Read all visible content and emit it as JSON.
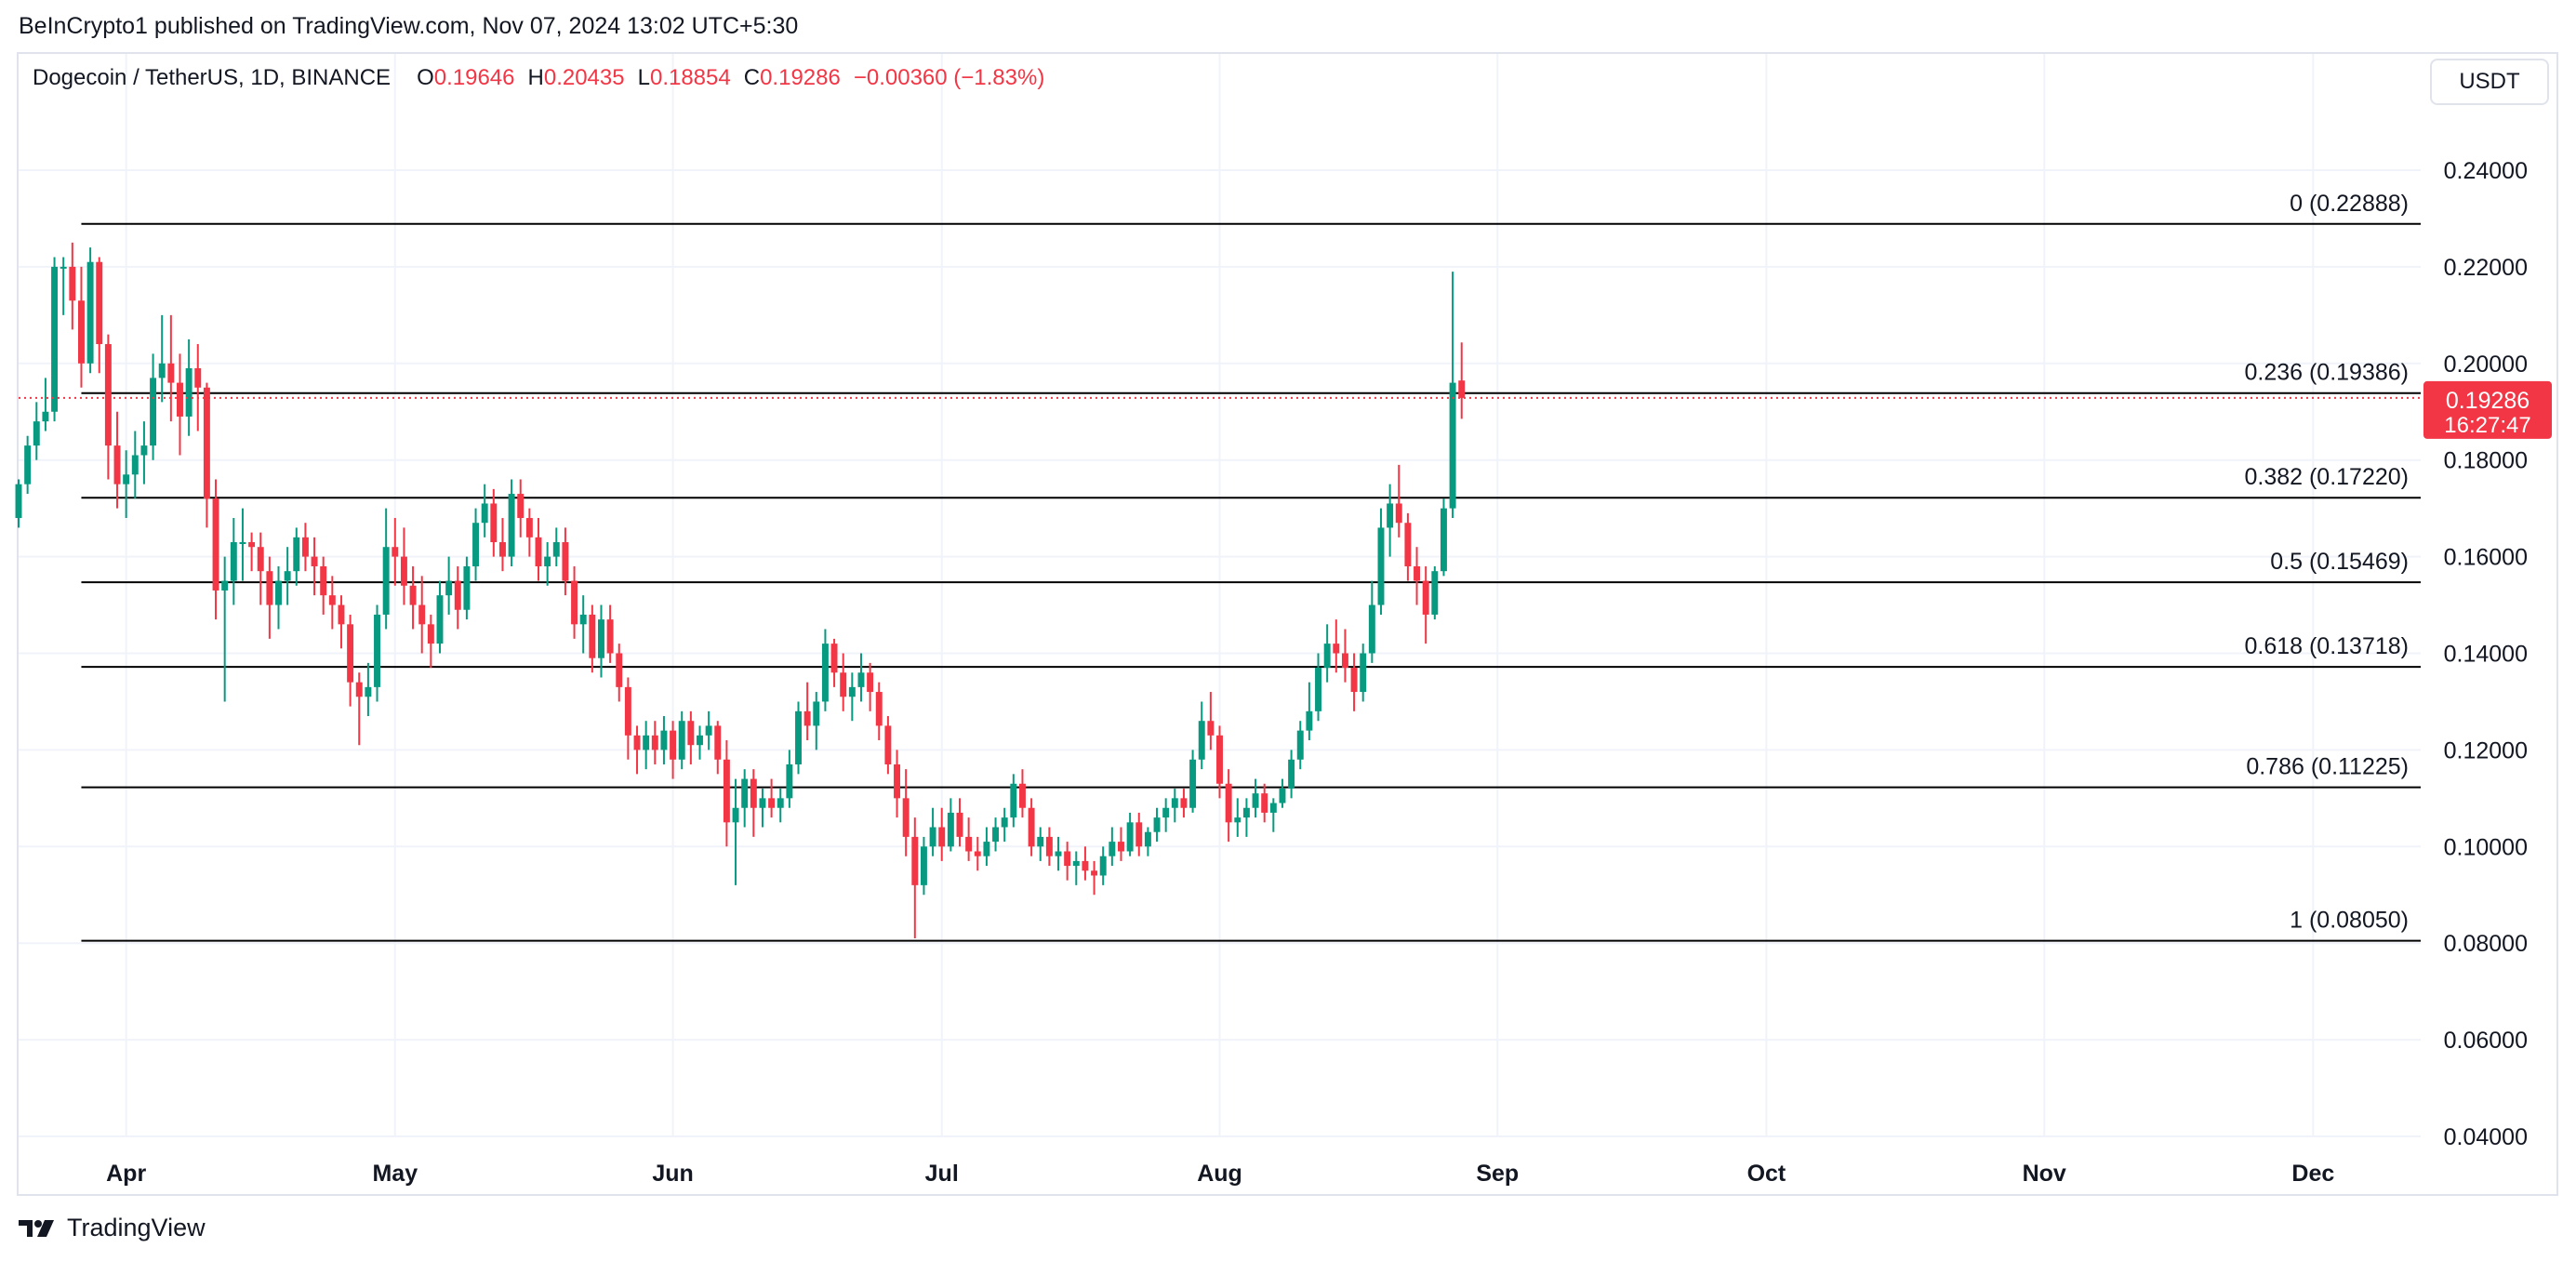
{
  "header": {
    "published": "BeInCrypto1 published on TradingView.com, Nov 07, 2024 13:02 UTC+5:30"
  },
  "legend": {
    "symbol": "Dogecoin / TetherUS, 1D, BINANCE",
    "open_label": "O",
    "open": "0.19646",
    "high_label": "H",
    "high": "0.20435",
    "low_label": "L",
    "low": "0.18854",
    "close_label": "C",
    "close": "0.19286",
    "change": "−0.00360 (−1.83%)"
  },
  "currency": "USDT",
  "footer": {
    "brand": "TradingView"
  },
  "colors": {
    "up": "#089981",
    "down": "#f23645",
    "grid": "#f0f3fa",
    "fib_line": "#000000",
    "text": "#131722"
  },
  "chart_data": {
    "type": "candlestick",
    "symbol": "Dogecoin / TetherUS",
    "interval": "1D",
    "exchange": "BINANCE",
    "currency": "USDT",
    "ylim": [
      0.04,
      0.25
    ],
    "yticks": [
      "0.04000",
      "0.06000",
      "0.08000",
      "0.10000",
      "0.12000",
      "0.14000",
      "0.16000",
      "0.18000",
      "0.20000",
      "0.22000",
      "0.24000"
    ],
    "xticks": [
      {
        "label": "Apr",
        "date": "2024-04-01"
      },
      {
        "label": "May",
        "date": "2024-05-01"
      },
      {
        "label": "Jun",
        "date": "2024-06-01"
      },
      {
        "label": "Jul",
        "date": "2024-07-01"
      },
      {
        "label": "Aug",
        "date": "2024-08-01"
      },
      {
        "label": "Sep",
        "date": "2024-09-01"
      },
      {
        "label": "Oct",
        "date": "2024-10-01"
      },
      {
        "label": "Nov",
        "date": "2024-11-01"
      },
      {
        "label": "Dec",
        "date": "2024-12-01"
      }
    ],
    "x_range": [
      "2024-03-20",
      "2024-12-13"
    ],
    "fib_start_date": "2024-03-27",
    "fib_levels": [
      {
        "label": "0 (0.22888)",
        "value": 0.22888
      },
      {
        "label": "0.236 (0.19386)",
        "value": 0.19386
      },
      {
        "label": "0.382 (0.17220)",
        "value": 0.1722
      },
      {
        "label": "0.5 (0.15469)",
        "value": 0.15469
      },
      {
        "label": "0.618 (0.13718)",
        "value": 0.13718
      },
      {
        "label": "0.786 (0.11225)",
        "value": 0.11225
      },
      {
        "label": "1 (0.08050)",
        "value": 0.0805
      }
    ],
    "last_price": {
      "label": "0.19286",
      "countdown": "16:27:47",
      "value": 0.19286
    },
    "first_date": "2024-03-20",
    "candles": [
      [
        0.168,
        0.176,
        0.166,
        0.175
      ],
      [
        0.175,
        0.185,
        0.173,
        0.183
      ],
      [
        0.183,
        0.192,
        0.18,
        0.188
      ],
      [
        0.188,
        0.197,
        0.186,
        0.19
      ],
      [
        0.19,
        0.222,
        0.188,
        0.22
      ],
      [
        0.22,
        0.222,
        0.21,
        0.22
      ],
      [
        0.22,
        0.225,
        0.207,
        0.213
      ],
      [
        0.213,
        0.22,
        0.195,
        0.2
      ],
      [
        0.2,
        0.224,
        0.198,
        0.221
      ],
      [
        0.221,
        0.222,
        0.198,
        0.204
      ],
      [
        0.204,
        0.206,
        0.176,
        0.183
      ],
      [
        0.183,
        0.19,
        0.17,
        0.175
      ],
      [
        0.175,
        0.182,
        0.168,
        0.177
      ],
      [
        0.177,
        0.186,
        0.172,
        0.181
      ],
      [
        0.181,
        0.188,
        0.175,
        0.183
      ],
      [
        0.183,
        0.202,
        0.18,
        0.197
      ],
      [
        0.197,
        0.21,
        0.192,
        0.2
      ],
      [
        0.2,
        0.21,
        0.188,
        0.196
      ],
      [
        0.196,
        0.202,
        0.181,
        0.189
      ],
      [
        0.189,
        0.205,
        0.185,
        0.199
      ],
      [
        0.199,
        0.204,
        0.186,
        0.195
      ],
      [
        0.195,
        0.196,
        0.166,
        0.172
      ],
      [
        0.172,
        0.176,
        0.147,
        0.153
      ],
      [
        0.153,
        0.16,
        0.13,
        0.155
      ],
      [
        0.155,
        0.168,
        0.15,
        0.163
      ],
      [
        0.163,
        0.17,
        0.155,
        0.163
      ],
      [
        0.163,
        0.165,
        0.157,
        0.162
      ],
      [
        0.162,
        0.165,
        0.15,
        0.157
      ],
      [
        0.157,
        0.16,
        0.143,
        0.15
      ],
      [
        0.15,
        0.158,
        0.145,
        0.155
      ],
      [
        0.155,
        0.162,
        0.15,
        0.157
      ],
      [
        0.157,
        0.166,
        0.154,
        0.164
      ],
      [
        0.164,
        0.167,
        0.157,
        0.16
      ],
      [
        0.16,
        0.164,
        0.152,
        0.158
      ],
      [
        0.158,
        0.16,
        0.148,
        0.152
      ],
      [
        0.152,
        0.156,
        0.145,
        0.15
      ],
      [
        0.15,
        0.152,
        0.141,
        0.146
      ],
      [
        0.146,
        0.148,
        0.129,
        0.134
      ],
      [
        0.134,
        0.136,
        0.121,
        0.131
      ],
      [
        0.131,
        0.138,
        0.127,
        0.133
      ],
      [
        0.133,
        0.15,
        0.13,
        0.148
      ],
      [
        0.148,
        0.17,
        0.145,
        0.162
      ],
      [
        0.162,
        0.168,
        0.154,
        0.16
      ],
      [
        0.16,
        0.166,
        0.15,
        0.154
      ],
      [
        0.154,
        0.158,
        0.145,
        0.15
      ],
      [
        0.15,
        0.156,
        0.14,
        0.146
      ],
      [
        0.146,
        0.148,
        0.137,
        0.142
      ],
      [
        0.142,
        0.155,
        0.14,
        0.152
      ],
      [
        0.152,
        0.16,
        0.148,
        0.155
      ],
      [
        0.155,
        0.158,
        0.145,
        0.149
      ],
      [
        0.149,
        0.16,
        0.147,
        0.158
      ],
      [
        0.158,
        0.17,
        0.155,
        0.167
      ],
      [
        0.167,
        0.175,
        0.164,
        0.171
      ],
      [
        0.171,
        0.174,
        0.16,
        0.163
      ],
      [
        0.163,
        0.168,
        0.157,
        0.16
      ],
      [
        0.16,
        0.176,
        0.158,
        0.173
      ],
      [
        0.173,
        0.176,
        0.164,
        0.168
      ],
      [
        0.168,
        0.17,
        0.16,
        0.164
      ],
      [
        0.164,
        0.168,
        0.155,
        0.158
      ],
      [
        0.158,
        0.163,
        0.154,
        0.16
      ],
      [
        0.16,
        0.166,
        0.158,
        0.163
      ],
      [
        0.163,
        0.166,
        0.152,
        0.155
      ],
      [
        0.155,
        0.158,
        0.143,
        0.146
      ],
      [
        0.146,
        0.152,
        0.14,
        0.148
      ],
      [
        0.148,
        0.15,
        0.136,
        0.139
      ],
      [
        0.139,
        0.15,
        0.135,
        0.147
      ],
      [
        0.147,
        0.15,
        0.138,
        0.14
      ],
      [
        0.14,
        0.142,
        0.13,
        0.133
      ],
      [
        0.133,
        0.135,
        0.118,
        0.123
      ],
      [
        0.123,
        0.125,
        0.115,
        0.12
      ],
      [
        0.12,
        0.126,
        0.116,
        0.123
      ],
      [
        0.123,
        0.126,
        0.117,
        0.12
      ],
      [
        0.12,
        0.127,
        0.117,
        0.124
      ],
      [
        0.124,
        0.126,
        0.114,
        0.118
      ],
      [
        0.118,
        0.128,
        0.116,
        0.126
      ],
      [
        0.126,
        0.128,
        0.117,
        0.121
      ],
      [
        0.121,
        0.125,
        0.118,
        0.123
      ],
      [
        0.123,
        0.128,
        0.12,
        0.125
      ],
      [
        0.125,
        0.126,
        0.115,
        0.118
      ],
      [
        0.118,
        0.122,
        0.1,
        0.105
      ],
      [
        0.105,
        0.114,
        0.092,
        0.108
      ],
      [
        0.108,
        0.116,
        0.104,
        0.114
      ],
      [
        0.114,
        0.116,
        0.102,
        0.108
      ],
      [
        0.108,
        0.112,
        0.104,
        0.11
      ],
      [
        0.11,
        0.114,
        0.106,
        0.108
      ],
      [
        0.108,
        0.112,
        0.105,
        0.11
      ],
      [
        0.11,
        0.12,
        0.108,
        0.117
      ],
      [
        0.117,
        0.13,
        0.115,
        0.128
      ],
      [
        0.128,
        0.134,
        0.122,
        0.125
      ],
      [
        0.125,
        0.132,
        0.12,
        0.13
      ],
      [
        0.13,
        0.145,
        0.128,
        0.142
      ],
      [
        0.142,
        0.143,
        0.133,
        0.136
      ],
      [
        0.136,
        0.14,
        0.128,
        0.131
      ],
      [
        0.131,
        0.136,
        0.126,
        0.133
      ],
      [
        0.133,
        0.14,
        0.13,
        0.136
      ],
      [
        0.136,
        0.138,
        0.128,
        0.132
      ],
      [
        0.132,
        0.134,
        0.122,
        0.125
      ],
      [
        0.125,
        0.127,
        0.115,
        0.117
      ],
      [
        0.117,
        0.12,
        0.106,
        0.11
      ],
      [
        0.11,
        0.116,
        0.098,
        0.102
      ],
      [
        0.102,
        0.106,
        0.081,
        0.092
      ],
      [
        0.092,
        0.102,
        0.09,
        0.1
      ],
      [
        0.1,
        0.108,
        0.098,
        0.104
      ],
      [
        0.104,
        0.108,
        0.097,
        0.1
      ],
      [
        0.1,
        0.11,
        0.099,
        0.107
      ],
      [
        0.107,
        0.11,
        0.1,
        0.102
      ],
      [
        0.102,
        0.106,
        0.097,
        0.099
      ],
      [
        0.099,
        0.102,
        0.095,
        0.098
      ],
      [
        0.098,
        0.104,
        0.096,
        0.101
      ],
      [
        0.101,
        0.106,
        0.099,
        0.104
      ],
      [
        0.104,
        0.108,
        0.101,
        0.106
      ],
      [
        0.106,
        0.115,
        0.104,
        0.113
      ],
      [
        0.113,
        0.116,
        0.106,
        0.108
      ],
      [
        0.108,
        0.11,
        0.098,
        0.1
      ],
      [
        0.1,
        0.104,
        0.097,
        0.102
      ],
      [
        0.102,
        0.104,
        0.096,
        0.098
      ],
      [
        0.098,
        0.102,
        0.095,
        0.099
      ],
      [
        0.099,
        0.101,
        0.093,
        0.096
      ],
      [
        0.096,
        0.099,
        0.092,
        0.097
      ],
      [
        0.097,
        0.1,
        0.093,
        0.095
      ],
      [
        0.095,
        0.097,
        0.09,
        0.094
      ],
      [
        0.094,
        0.1,
        0.092,
        0.098
      ],
      [
        0.098,
        0.104,
        0.096,
        0.101
      ],
      [
        0.101,
        0.104,
        0.097,
        0.099
      ],
      [
        0.099,
        0.107,
        0.098,
        0.105
      ],
      [
        0.105,
        0.107,
        0.098,
        0.1
      ],
      [
        0.1,
        0.104,
        0.098,
        0.103
      ],
      [
        0.103,
        0.108,
        0.101,
        0.106
      ],
      [
        0.106,
        0.11,
        0.103,
        0.108
      ],
      [
        0.108,
        0.112,
        0.105,
        0.11
      ],
      [
        0.11,
        0.112,
        0.106,
        0.108
      ],
      [
        0.108,
        0.12,
        0.107,
        0.118
      ],
      [
        0.118,
        0.13,
        0.116,
        0.126
      ],
      [
        0.126,
        0.132,
        0.12,
        0.123
      ],
      [
        0.123,
        0.125,
        0.11,
        0.113
      ],
      [
        0.113,
        0.116,
        0.101,
        0.105
      ],
      [
        0.105,
        0.11,
        0.102,
        0.106
      ],
      [
        0.106,
        0.11,
        0.102,
        0.108
      ],
      [
        0.108,
        0.114,
        0.106,
        0.111
      ],
      [
        0.111,
        0.113,
        0.105,
        0.107
      ],
      [
        0.107,
        0.11,
        0.103,
        0.109
      ],
      [
        0.109,
        0.114,
        0.108,
        0.112
      ],
      [
        0.112,
        0.12,
        0.11,
        0.118
      ],
      [
        0.118,
        0.126,
        0.116,
        0.124
      ],
      [
        0.124,
        0.134,
        0.122,
        0.128
      ],
      [
        0.128,
        0.14,
        0.126,
        0.137
      ],
      [
        0.137,
        0.146,
        0.134,
        0.142
      ],
      [
        0.142,
        0.147,
        0.136,
        0.14
      ],
      [
        0.14,
        0.145,
        0.134,
        0.137
      ],
      [
        0.137,
        0.14,
        0.128,
        0.132
      ],
      [
        0.132,
        0.142,
        0.13,
        0.14
      ],
      [
        0.14,
        0.155,
        0.138,
        0.15
      ],
      [
        0.15,
        0.17,
        0.148,
        0.166
      ],
      [
        0.166,
        0.175,
        0.16,
        0.171
      ],
      [
        0.171,
        0.179,
        0.164,
        0.167
      ],
      [
        0.167,
        0.169,
        0.155,
        0.158
      ],
      [
        0.158,
        0.162,
        0.15,
        0.155
      ],
      [
        0.155,
        0.158,
        0.142,
        0.148
      ],
      [
        0.148,
        0.158,
        0.147,
        0.157
      ],
      [
        0.157,
        0.172,
        0.156,
        0.17
      ],
      [
        0.17,
        0.219,
        0.168,
        0.196
      ],
      [
        0.19646,
        0.20435,
        0.18854,
        0.19286
      ]
    ]
  }
}
